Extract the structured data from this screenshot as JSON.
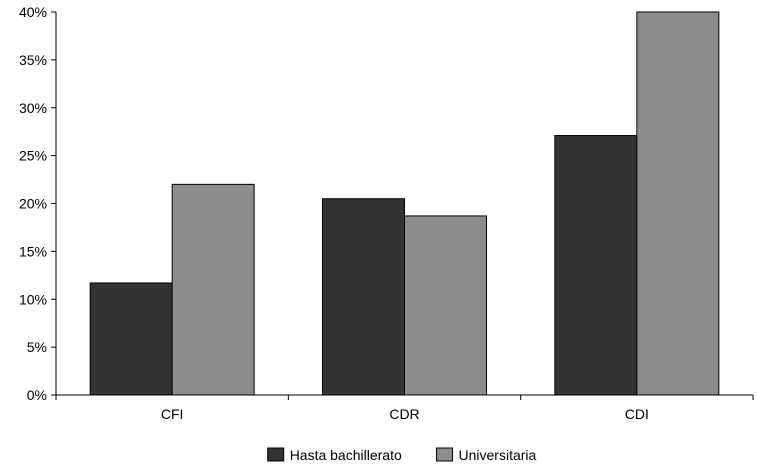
{
  "chart_data": {
    "type": "bar",
    "title": "",
    "xlabel": "",
    "ylabel": "",
    "categories": [
      "CFI",
      "CDR",
      "CDI"
    ],
    "series": [
      {
        "name": "Hasta bachillerato",
        "values": [
          11.7,
          20.5,
          27.1
        ],
        "color": "#333333"
      },
      {
        "name": "Universitaria",
        "values": [
          22.0,
          18.7,
          40.0
        ],
        "color": "#8c8c8c"
      }
    ],
    "ylim": [
      0,
      40
    ],
    "yticks": [
      0,
      5,
      10,
      15,
      20,
      25,
      30,
      35,
      40
    ],
    "ytick_suffix": "%",
    "grid": false,
    "legend_position": "bottom-center"
  }
}
